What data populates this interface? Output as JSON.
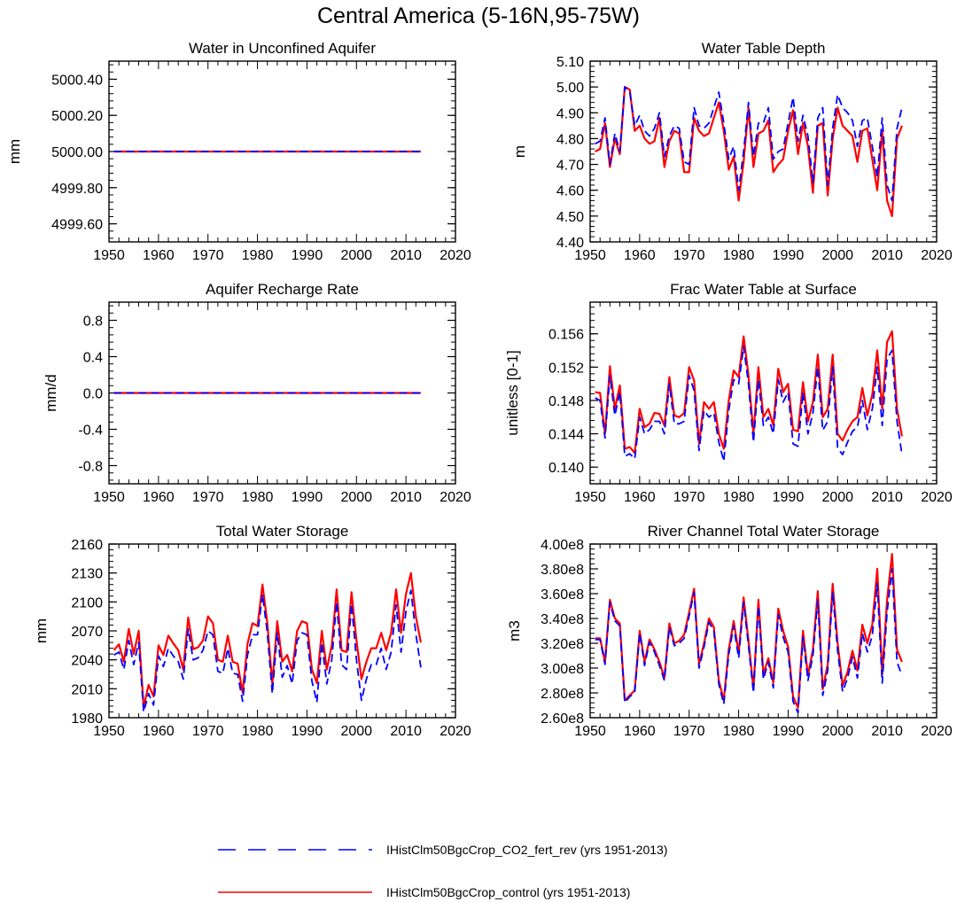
{
  "figure": {
    "title": "Central America (5-16N,95-75W)"
  },
  "legend": [
    {
      "label": "IHistClm50BgcCrop_CO2_fert_rev (yrs 1951-2013)",
      "color": "#0000ff",
      "dash": "dashed"
    },
    {
      "label": "IHistClm50BgcCrop_control (yrs 1951-2013)",
      "color": "#ff0000",
      "dash": "solid"
    }
  ],
  "chart_data": [
    {
      "type": "line",
      "title": "Water in Unconfined Aquifer",
      "ylabel": "mm",
      "xlim": [
        1950,
        2020
      ],
      "ylim": [
        4999.5,
        5000.5
      ],
      "xticks": [
        "1950",
        "1960",
        "1970",
        "1980",
        "1990",
        "2000",
        "2010",
        "2020"
      ],
      "yticks": [
        {
          "v": 4999.6,
          "t": "4999.60"
        },
        {
          "v": 4999.8,
          "t": "4999.80"
        },
        {
          "v": 5000.0,
          "t": "5000.00"
        },
        {
          "v": 5000.2,
          "t": "5000.20"
        },
        {
          "v": 5000.4,
          "t": "5000.40"
        }
      ],
      "x": [
        1951,
        2013
      ],
      "series": [
        {
          "name": "IHistClm50BgcCrop_control",
          "color": "#ff0000",
          "dash": "solid",
          "values": [
            5000.0,
            5000.0
          ]
        },
        {
          "name": "IHistClm50BgcCrop_CO2_fert_rev",
          "color": "#0000ff",
          "dash": "dashed",
          "values": [
            5000.0,
            5000.0
          ]
        }
      ]
    },
    {
      "type": "line",
      "title": "Water Table Depth",
      "ylabel": "m",
      "xlim": [
        1950,
        2020
      ],
      "ylim": [
        4.4,
        5.1
      ],
      "xticks": [
        "1950",
        "1960",
        "1970",
        "1980",
        "1990",
        "2000",
        "2010",
        "2020"
      ],
      "yticks": [
        {
          "v": 4.4,
          "t": "4.40"
        },
        {
          "v": 4.5,
          "t": "4.50"
        },
        {
          "v": 4.6,
          "t": "4.60"
        },
        {
          "v": 4.7,
          "t": "4.70"
        },
        {
          "v": 4.8,
          "t": "4.80"
        },
        {
          "v": 4.9,
          "t": "4.90"
        },
        {
          "v": 5.0,
          "t": "5.00"
        },
        {
          "v": 5.1,
          "t": "5.10"
        }
      ],
      "x_start": 1951,
      "series": [
        {
          "name": "IHistClm50BgcCrop_control",
          "color": "#ff0000",
          "dash": "solid",
          "values": [
            4.75,
            4.76,
            4.86,
            4.69,
            4.8,
            4.74,
            5.0,
            4.99,
            4.83,
            4.85,
            4.8,
            4.78,
            4.79,
            4.88,
            4.69,
            4.79,
            4.83,
            4.82,
            4.67,
            4.67,
            4.88,
            4.83,
            4.81,
            4.82,
            4.88,
            4.94,
            4.83,
            4.68,
            4.73,
            4.56,
            4.71,
            4.92,
            4.69,
            4.82,
            4.83,
            4.87,
            4.67,
            4.7,
            4.72,
            4.83,
            4.91,
            4.74,
            4.86,
            4.77,
            4.59,
            4.85,
            4.86,
            4.58,
            4.8,
            4.92,
            4.85,
            4.83,
            4.81,
            4.71,
            4.83,
            4.84,
            4.72,
            4.6,
            4.83,
            4.56,
            4.5,
            4.8,
            4.85
          ]
        },
        {
          "name": "IHistClm50BgcCrop_CO2_fert_rev",
          "color": "#0000ff",
          "dash": "dashed",
          "values": [
            4.78,
            4.79,
            4.88,
            4.7,
            4.82,
            4.75,
            5.0,
            4.98,
            4.85,
            4.89,
            4.83,
            4.81,
            4.84,
            4.9,
            4.73,
            4.81,
            4.85,
            4.84,
            4.71,
            4.7,
            4.92,
            4.85,
            4.84,
            4.86,
            4.92,
            4.98,
            4.86,
            4.72,
            4.77,
            4.6,
            4.75,
            4.94,
            4.73,
            4.86,
            4.86,
            4.92,
            4.72,
            4.75,
            4.76,
            4.86,
            4.96,
            4.79,
            4.89,
            4.81,
            4.63,
            4.88,
            4.92,
            4.62,
            4.84,
            4.97,
            4.92,
            4.9,
            4.87,
            4.77,
            4.87,
            4.88,
            4.77,
            4.65,
            4.88,
            4.62,
            4.56,
            4.84,
            4.92
          ]
        }
      ]
    },
    {
      "type": "line",
      "title": "Aquifer Recharge Rate",
      "ylabel": "mm/d",
      "xlim": [
        1950,
        2020
      ],
      "ylim": [
        -1.0,
        1.0
      ],
      "xticks": [
        "1950",
        "1960",
        "1970",
        "1980",
        "1990",
        "2000",
        "2010",
        "2020"
      ],
      "yticks": [
        {
          "v": -0.8,
          "t": "-0.8"
        },
        {
          "v": -0.4,
          "t": "-0.4"
        },
        {
          "v": 0.0,
          "t": "0.0"
        },
        {
          "v": 0.4,
          "t": "0.4"
        },
        {
          "v": 0.8,
          "t": "0.8"
        }
      ],
      "x": [
        1951,
        2013
      ],
      "series": [
        {
          "name": "IHistClm50BgcCrop_control",
          "color": "#ff0000",
          "dash": "solid",
          "values": [
            0.0,
            0.0
          ]
        },
        {
          "name": "IHistClm50BgcCrop_CO2_fert_rev",
          "color": "#0000ff",
          "dash": "dashed",
          "values": [
            0.0,
            0.0
          ]
        }
      ]
    },
    {
      "type": "line",
      "title": "Frac Water Table at Surface",
      "ylabel": "unitless [0-1]",
      "xlim": [
        1950,
        2020
      ],
      "ylim": [
        0.138,
        0.1598
      ],
      "xticks": [
        "1950",
        "1960",
        "1970",
        "1980",
        "1990",
        "2000",
        "2010",
        "2020"
      ],
      "yticks": [
        {
          "v": 0.14,
          "t": "0.140"
        },
        {
          "v": 0.144,
          "t": "0.144"
        },
        {
          "v": 0.148,
          "t": "0.148"
        },
        {
          "v": 0.152,
          "t": "0.152"
        },
        {
          "v": 0.156,
          "t": "0.156"
        }
      ],
      "x_start": 1951,
      "series": [
        {
          "name": "IHistClm50BgcCrop_control",
          "color": "#ff0000",
          "dash": "solid",
          "values": [
            0.149,
            0.1489,
            0.144,
            0.1521,
            0.147,
            0.1498,
            0.1422,
            0.1424,
            0.1417,
            0.147,
            0.1448,
            0.1452,
            0.1465,
            0.1464,
            0.145,
            0.1508,
            0.1462,
            0.146,
            0.1465,
            0.152,
            0.1504,
            0.1428,
            0.1478,
            0.147,
            0.1478,
            0.144,
            0.1422,
            0.148,
            0.1516,
            0.1508,
            0.1557,
            0.151,
            0.144,
            0.152,
            0.146,
            0.147,
            0.145,
            0.1518,
            0.149,
            0.15,
            0.1445,
            0.1443,
            0.1502,
            0.1455,
            0.1478,
            0.1535,
            0.146,
            0.147,
            0.1535,
            0.144,
            0.1432,
            0.1445,
            0.1455,
            0.146,
            0.1495,
            0.1462,
            0.1487,
            0.154,
            0.147,
            0.155,
            0.1563,
            0.147,
            0.1437
          ]
        },
        {
          "name": "IHistClm50BgcCrop_CO2_fert_rev",
          "color": "#0000ff",
          "dash": "dashed",
          "values": [
            0.1483,
            0.148,
            0.1435,
            0.151,
            0.1462,
            0.149,
            0.1413,
            0.1416,
            0.141,
            0.146,
            0.144,
            0.1445,
            0.1455,
            0.1455,
            0.144,
            0.15,
            0.1452,
            0.1452,
            0.1455,
            0.151,
            0.1492,
            0.142,
            0.1468,
            0.146,
            0.1465,
            0.143,
            0.1407,
            0.1468,
            0.1505,
            0.15,
            0.1545,
            0.15,
            0.143,
            0.1505,
            0.145,
            0.146,
            0.144,
            0.1505,
            0.1478,
            0.149,
            0.1428,
            0.1425,
            0.149,
            0.144,
            0.1465,
            0.152,
            0.1444,
            0.1455,
            0.152,
            0.1423,
            0.1415,
            0.143,
            0.1443,
            0.1448,
            0.148,
            0.1445,
            0.147,
            0.152,
            0.145,
            0.153,
            0.154,
            0.1455,
            0.1415
          ]
        }
      ]
    },
    {
      "type": "line",
      "title": "Total Water Storage",
      "ylabel": "mm",
      "xlim": [
        1950,
        2020
      ],
      "ylim": [
        1980,
        2160
      ],
      "xticks": [
        "1950",
        "1960",
        "1970",
        "1980",
        "1990",
        "2000",
        "2010",
        "2020"
      ],
      "yticks": [
        {
          "v": 1980,
          "t": "1980"
        },
        {
          "v": 2010,
          "t": "2010"
        },
        {
          "v": 2040,
          "t": "2040"
        },
        {
          "v": 2070,
          "t": "2070"
        },
        {
          "v": 2100,
          "t": "2100"
        },
        {
          "v": 2130,
          "t": "2130"
        },
        {
          "v": 2160,
          "t": "2160"
        }
      ],
      "x_start": 1951,
      "series": [
        {
          "name": "IHistClm50BgcCrop_control",
          "color": "#ff0000",
          "dash": "solid",
          "values": [
            2050,
            2056,
            2038,
            2072,
            2046,
            2070,
            1991,
            2014,
            2002,
            2055,
            2045,
            2065,
            2057,
            2050,
            2030,
            2084,
            2051,
            2053,
            2060,
            2085,
            2078,
            2040,
            2038,
            2065,
            2038,
            2036,
            2006,
            2057,
            2078,
            2075,
            2118,
            2078,
            2015,
            2080,
            2038,
            2045,
            2028,
            2070,
            2080,
            2078,
            2030,
            2016,
            2070,
            2030,
            2055,
            2113,
            2050,
            2048,
            2110,
            2060,
            2020,
            2038,
            2052,
            2052,
            2068,
            2050,
            2068,
            2113,
            2068,
            2108,
            2130,
            2085,
            2058
          ]
        },
        {
          "name": "IHistClm50BgcCrop_CO2_fert_rev",
          "color": "#0000ff",
          "dash": "dashed",
          "values": [
            2045,
            2048,
            2030,
            2060,
            2035,
            2058,
            1986,
            2005,
            1993,
            2044,
            2033,
            2052,
            2044,
            2038,
            2020,
            2072,
            2040,
            2042,
            2050,
            2070,
            2066,
            2028,
            2026,
            2052,
            2026,
            2025,
            1997,
            2045,
            2066,
            2066,
            2108,
            2068,
            2005,
            2068,
            2022,
            2034,
            2015,
            2060,
            2068,
            2066,
            2018,
            1996,
            2058,
            2015,
            2040,
            2100,
            2035,
            2030,
            2098,
            2040,
            1998,
            2020,
            2035,
            2035,
            2052,
            2030,
            2048,
            2097,
            2048,
            2090,
            2112,
            2067,
            2032
          ]
        }
      ]
    },
    {
      "type": "line",
      "title": "River Channel Total Water Storage",
      "ylabel": "m3",
      "xlim": [
        1950,
        2020
      ],
      "ylim": [
        260000000,
        400000000
      ],
      "xticks": [
        "1950",
        "1960",
        "1970",
        "1980",
        "1990",
        "2000",
        "2010",
        "2020"
      ],
      "yticks": [
        {
          "v": 260000000,
          "t": "2.60e8"
        },
        {
          "v": 280000000,
          "t": "2.80e8"
        },
        {
          "v": 300000000,
          "t": "3.00e8"
        },
        {
          "v": 320000000,
          "t": "3.20e8"
        },
        {
          "v": 340000000,
          "t": "3.40e8"
        },
        {
          "v": 360000000,
          "t": "3.60e8"
        },
        {
          "v": 380000000,
          "t": "3.80e8"
        },
        {
          "v": 400000000,
          "t": "4.00e8"
        }
      ],
      "x_start": 1951,
      "series": [
        {
          "name": "IHistClm50BgcCrop_control",
          "color": "#ff0000",
          "dash": "solid",
          "values": [
            324000000,
            324000000,
            305000000,
            355000000,
            340000000,
            336000000,
            274000000,
            278000000,
            282000000,
            330000000,
            305000000,
            323000000,
            315000000,
            305000000,
            292000000,
            336000000,
            320000000,
            322000000,
            327000000,
            345000000,
            364000000,
            303000000,
            320000000,
            340000000,
            333000000,
            290000000,
            274000000,
            315000000,
            338000000,
            312000000,
            357000000,
            322000000,
            283000000,
            355000000,
            295000000,
            308000000,
            288000000,
            348000000,
            330000000,
            317000000,
            277000000,
            268000000,
            330000000,
            294000000,
            315000000,
            362000000,
            283000000,
            303000000,
            368000000,
            320000000,
            286000000,
            297000000,
            314000000,
            298000000,
            335000000,
            320000000,
            335000000,
            380000000,
            295000000,
            355000000,
            392000000,
            315000000,
            305000000
          ]
        },
        {
          "name": "IHistClm50BgcCrop_CO2_fert_rev",
          "color": "#0000ff",
          "dash": "dashed",
          "values": [
            323000000,
            323000000,
            303000000,
            353000000,
            338000000,
            334000000,
            272000000,
            277000000,
            280000000,
            328000000,
            302000000,
            321000000,
            313000000,
            302000000,
            290000000,
            333000000,
            318000000,
            320000000,
            324000000,
            342000000,
            361000000,
            300000000,
            317000000,
            337000000,
            330000000,
            287000000,
            271000000,
            311000000,
            334000000,
            308000000,
            353000000,
            318000000,
            280000000,
            350000000,
            291000000,
            305000000,
            284000000,
            343000000,
            325000000,
            313000000,
            273000000,
            264000000,
            325000000,
            290000000,
            310000000,
            355000000,
            278000000,
            298000000,
            361000000,
            314000000,
            281000000,
            292000000,
            309000000,
            292000000,
            328000000,
            313000000,
            326000000,
            368000000,
            288000000,
            345000000,
            380000000,
            305000000,
            294000000
          ]
        }
      ]
    }
  ]
}
